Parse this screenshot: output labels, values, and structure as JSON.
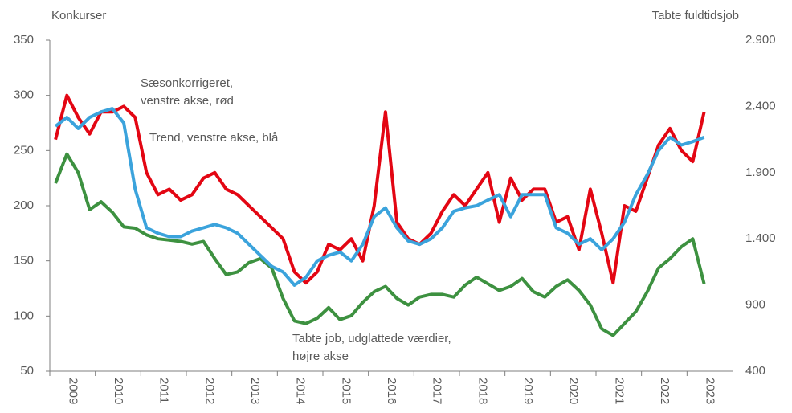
{
  "chart_data": {
    "type": "line",
    "y_label": "Konkurser",
    "y2_label": "Tabte fuldtidsjob",
    "categories": [
      null,
      "2009",
      null,
      null,
      null,
      "2010",
      null,
      null,
      null,
      "2011",
      null,
      null,
      null,
      "2012",
      null,
      null,
      null,
      "2013",
      null,
      null,
      null,
      "2014",
      null,
      null,
      null,
      "2015",
      null,
      null,
      null,
      "2016",
      null,
      null,
      null,
      "2017",
      null,
      null,
      null,
      "2018",
      null,
      null,
      null,
      "2019",
      null,
      null,
      null,
      "2020",
      null,
      null,
      null,
      "2021",
      null,
      null,
      null,
      "2022",
      null,
      null,
      null,
      "2023"
    ],
    "ylim": [
      50,
      350
    ],
    "yticks": [
      50,
      100,
      150,
      200,
      250,
      300,
      350
    ],
    "y2lim": [
      400,
      2900
    ],
    "y2ticks": [
      400,
      {
        "value": 900,
        "label": "900"
      },
      {
        "value": 1400,
        "label": "1.400"
      },
      {
        "value": 1900,
        "label": "1.900"
      },
      {
        "value": 2400,
        "label": "2.400"
      },
      {
        "value": 2900,
        "label": "2.900"
      }
    ],
    "series": [
      {
        "name": "Sæsonkorrigeret",
        "color": "#e30613",
        "axis": "y",
        "values": [
          260,
          300,
          280,
          265,
          285,
          285,
          290,
          280,
          230,
          210,
          215,
          205,
          210,
          225,
          230,
          215,
          210,
          200,
          190,
          180,
          170,
          140,
          130,
          140,
          165,
          160,
          170,
          150,
          200,
          285,
          185,
          170,
          165,
          175,
          195,
          210,
          200,
          215,
          230,
          185,
          225,
          205,
          215,
          215,
          185,
          190,
          160,
          215,
          175,
          130,
          200,
          195,
          225,
          255,
          270,
          250,
          240,
          285
        ]
      },
      {
        "name": "Trend",
        "color": "#3ba3dc",
        "axis": "y",
        "values": [
          272,
          280,
          270,
          280,
          285,
          288,
          275,
          215,
          180,
          175,
          172,
          172,
          177,
          180,
          183,
          180,
          175,
          165,
          155,
          145,
          140,
          128,
          135,
          150,
          155,
          158,
          150,
          165,
          190,
          198,
          180,
          168,
          165,
          170,
          180,
          195,
          198,
          200,
          205,
          210,
          190,
          210,
          210,
          210,
          180,
          175,
          165,
          170,
          160,
          170,
          185,
          210,
          228,
          250,
          262,
          255,
          258,
          262
        ]
      },
      {
        "name": "Tabte job",
        "color": "#3d9140",
        "axis": "y2",
        "values": [
          1820,
          2040,
          1900,
          1620,
          1680,
          1600,
          1490,
          1480,
          1430,
          1400,
          1390,
          1380,
          1360,
          1380,
          1250,
          1130,
          1150,
          1220,
          1250,
          1180,
          950,
          780,
          760,
          800,
          880,
          790,
          820,
          920,
          1000,
          1040,
          950,
          900,
          960,
          980,
          980,
          960,
          1050,
          1110,
          1060,
          1010,
          1040,
          1100,
          1000,
          960,
          1040,
          1090,
          1010,
          900,
          720,
          670,
          760,
          850,
          1000,
          1180,
          1250,
          1340,
          1400,
          1060
        ]
      }
    ],
    "annotations": [
      [
        "Sæsonkorrigeret,",
        "venstre akse, rød"
      ],
      [
        "Trend, venstre akse, blå"
      ],
      [
        "Tabte job, udglattede værdier,",
        "højre akse"
      ]
    ]
  }
}
